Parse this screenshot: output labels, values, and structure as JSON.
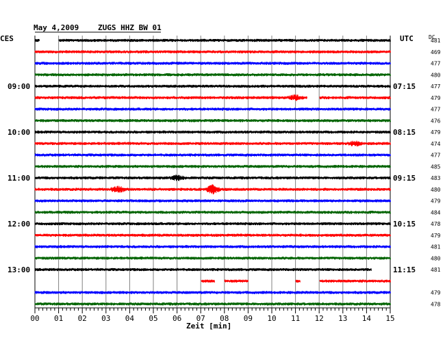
{
  "header": {
    "date": "May 4,2009",
    "station": "ZUGS HHZ BW 01",
    "left_tz": "CES",
    "right_tz": "UTC",
    "dc_label": "DC"
  },
  "colors": {
    "black": "#000000",
    "red": "#ff0000",
    "blue": "#0000ff",
    "green": "#006400",
    "grid": "#808080"
  },
  "chart_data": {
    "type": "line",
    "title": "May 4,2009 ZUGS HHZ BW 01",
    "xlabel": "Zeit [min]",
    "xlim": [
      0,
      15
    ],
    "x_ticks": [
      "00",
      "01",
      "02",
      "03",
      "04",
      "05",
      "06",
      "07",
      "08",
      "09",
      "10",
      "11",
      "12",
      "13",
      "14",
      "15"
    ],
    "left_hour_labels": [
      "09:00",
      "10:00",
      "11:00",
      "12:00",
      "13:00"
    ],
    "right_hour_labels": [
      "07:15",
      "08:15",
      "09:15",
      "10:15",
      "11:15"
    ],
    "hour_label_trace_index": [
      4,
      8,
      12,
      16,
      20
    ],
    "traces": [
      {
        "color": "black",
        "dc": "481",
        "gaps": [
          [
            0.2,
            1.0
          ]
        ]
      },
      {
        "color": "red",
        "dc": "469",
        "gaps": []
      },
      {
        "color": "blue",
        "dc": "477",
        "gaps": []
      },
      {
        "color": "green",
        "dc": "480",
        "gaps": []
      },
      {
        "color": "black",
        "dc": "477",
        "gaps": []
      },
      {
        "color": "red",
        "dc": "479",
        "gaps": [
          [
            11.5,
            12.0
          ]
        ]
      },
      {
        "color": "blue",
        "dc": "477",
        "gaps": []
      },
      {
        "color": "green",
        "dc": "476",
        "gaps": []
      },
      {
        "color": "black",
        "dc": "479",
        "gaps": []
      },
      {
        "color": "red",
        "dc": "474",
        "gaps": []
      },
      {
        "color": "blue",
        "dc": "477",
        "gaps": []
      },
      {
        "color": "green",
        "dc": "485",
        "gaps": []
      },
      {
        "color": "black",
        "dc": "483",
        "gaps": []
      },
      {
        "color": "red",
        "dc": "480",
        "gaps": []
      },
      {
        "color": "blue",
        "dc": "479",
        "gaps": []
      },
      {
        "color": "green",
        "dc": "484",
        "gaps": []
      },
      {
        "color": "black",
        "dc": "478",
        "gaps": []
      },
      {
        "color": "red",
        "dc": "479",
        "gaps": []
      },
      {
        "color": "blue",
        "dc": "481",
        "gaps": []
      },
      {
        "color": "green",
        "dc": "480",
        "gaps": []
      },
      {
        "color": "black",
        "dc": "481",
        "gaps": [],
        "end": 14.2
      },
      {
        "color": "red",
        "dc": "",
        "gaps": [
          [
            0,
            7.0
          ],
          [
            7.6,
            8.0
          ],
          [
            9.0,
            11.0
          ],
          [
            11.2,
            12.0
          ]
        ]
      },
      {
        "color": "blue",
        "dc": "479",
        "gaps": []
      },
      {
        "color": "green",
        "dc": "478",
        "gaps": []
      }
    ],
    "events": [
      {
        "trace": 13,
        "x": 3.5,
        "amp": 2.0
      },
      {
        "trace": 13,
        "x": 7.5,
        "amp": 2.5
      },
      {
        "trace": 12,
        "x": 6.0,
        "amp": 1.5
      },
      {
        "trace": 5,
        "x": 11.0,
        "amp": 1.5
      },
      {
        "trace": 9,
        "x": 13.5,
        "amp": 1.4
      }
    ]
  }
}
